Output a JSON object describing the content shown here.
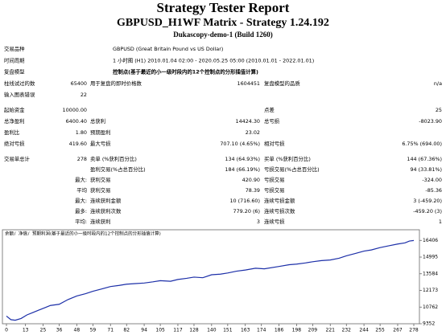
{
  "header": {
    "title": "Strategy Tester Report",
    "subtitle": "GBPUSD_H1WF Matrix - Strategy 1.24.192",
    "server": "Dukascopy-demo-1 (Build 1260)"
  },
  "report": {
    "sections": [
      [
        {
          "label": "交易品种",
          "text": "GBPUSD (Great Britain Pound vs US Dollar)"
        },
        {
          "label": "时间周期",
          "text": "1 小时图 (H1) 2010.01.04 02:00 - 2020.05.25 05:00 (2010.01.01 - 2022.01.01)"
        },
        {
          "label": "复盘模型",
          "text": "控制点(基于最近的小一级时段内的12个控制点的分形插值计算)",
          "color": "#e00000"
        },
        {
          "label": "柱线试过的数",
          "value": "65400",
          "label2": "用于复盘的即时价格数",
          "value2": "1604451",
          "label3": "复盘模型的品质",
          "value3": "n/a"
        },
        {
          "label": "输入图表错误",
          "value": "22"
        }
      ],
      [
        {
          "label": "起始资金",
          "value": "10000.00",
          "label3": "点差",
          "value3": "25"
        },
        {
          "label": "总净盈利",
          "value": "6400.40",
          "label2": "总获利",
          "value2": "14424.30",
          "label3": "总亏损",
          "value3": "-8023.90"
        },
        {
          "label": "盈利比",
          "value": "1.80",
          "label2": "预期盈利",
          "value2": "23.02"
        },
        {
          "label": "绝对亏损",
          "value": "419.60",
          "label2": "最大亏损",
          "value2": "707.10 (4.65%)",
          "label3": "相对亏损",
          "value3": "6.75% (694.00)"
        }
      ],
      [
        {
          "label": "交易单总计",
          "value": "278",
          "label2": "卖单 (%获利百分比)",
          "value2": "134 (64.93%)",
          "label3": "买单 (%获利百分比)",
          "value3": "144 (67.36%)"
        },
        {
          "label2": "盈利交易(%占总百分比)",
          "value2": "184 (66.19%)",
          "label3": "亏损交易(%占总百分比)",
          "value3": "94 (33.81%)"
        },
        {
          "value": "最大:",
          "label2": "获利交易",
          "value2": "420.90",
          "label3": "亏损交易",
          "value3": "-324.00"
        },
        {
          "value": "平均",
          "label2": "获利交易",
          "value2": "78.39",
          "label3": "亏损交易",
          "value3": "-85.36"
        },
        {
          "value": "最大:",
          "label2": "连续获利金额",
          "value2": "10 (716.60)",
          "label3": "连续亏损金额",
          "value3": "3 (-459.20)"
        },
        {
          "value": "最多:",
          "label2": "连续获利次数",
          "value2": "779.20 (6)",
          "label3": "连续亏损次数",
          "value3": "-459.20 (3)"
        },
        {
          "value": "平均:",
          "label2": "连续获利",
          "value2": "3",
          "label3": "连续亏损",
          "value3": "1"
        }
      ]
    ]
  },
  "chart_data": {
    "type": "line",
    "legend": [
      {
        "name": "余额",
        "color": "#0000ff"
      },
      {
        "name": "净值",
        "color": "#00a000"
      },
      {
        "name": "预期利润(基于最近的小一级时段内的12个控制点的分形插值计算)",
        "color": "#ff0000"
      }
    ],
    "x": [
      0,
      3,
      6,
      10,
      14,
      18,
      22,
      26,
      30,
      36,
      42,
      48,
      54,
      59,
      65,
      71,
      77,
      82,
      88,
      94,
      100,
      105,
      112,
      117,
      123,
      128,
      134,
      140,
      146,
      151,
      157,
      163,
      170,
      176,
      186,
      193,
      198,
      204,
      209,
      215,
      221,
      227,
      232,
      238,
      244,
      249,
      255,
      261,
      267,
      272,
      275,
      278
    ],
    "series": [
      {
        "name": "余额",
        "color": "#1c2fa8",
        "values": [
          10000,
          9700,
          9650,
          9800,
          10100,
          10300,
          10500,
          10700,
          10900,
          11000,
          11400,
          11700,
          11900,
          12100,
          12300,
          12500,
          12600,
          12700,
          12750,
          12800,
          12900,
          13000,
          12950,
          13100,
          13200,
          13300,
          13250,
          13500,
          13550,
          13650,
          13800,
          13900,
          14050,
          14000,
          14200,
          14350,
          14400,
          14500,
          14600,
          14700,
          14750,
          14900,
          15100,
          15300,
          15500,
          15600,
          15800,
          15950,
          16100,
          16200,
          16350,
          16400.4
        ]
      }
    ],
    "xlim": [
      0,
      278
    ],
    "ylim": [
      9352,
      16900
    ],
    "xticks": [
      0,
      13,
      25,
      36,
      48,
      59,
      71,
      82,
      94,
      105,
      117,
      128,
      140,
      151,
      163,
      174,
      186,
      198,
      209,
      221,
      232,
      244,
      255,
      267,
      278
    ],
    "yticks": [
      9352,
      10762,
      12173,
      13584,
      14995,
      16406
    ],
    "grid": false
  }
}
